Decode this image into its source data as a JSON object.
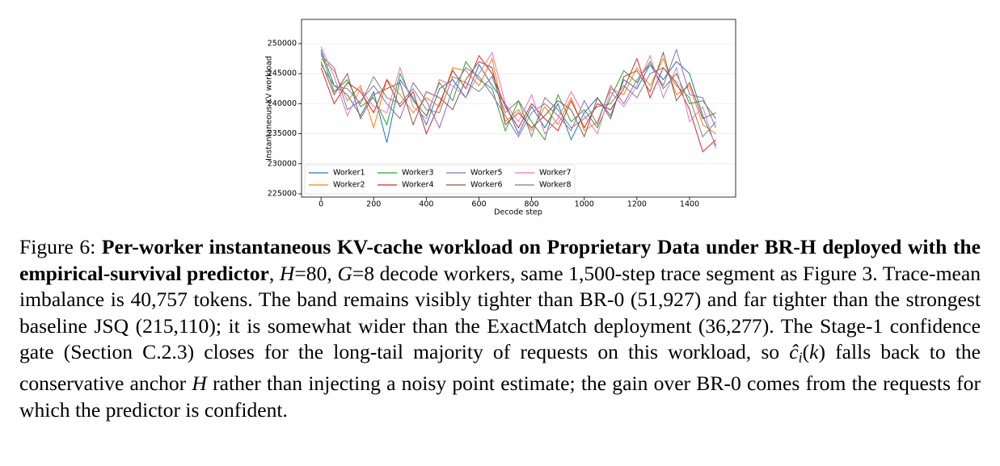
{
  "chart_data": {
    "type": "line",
    "ylabel": "Instantaneous KV workload",
    "xlabel": "Decode step",
    "x": [
      0,
      50,
      100,
      150,
      200,
      250,
      300,
      350,
      400,
      450,
      500,
      550,
      600,
      650,
      700,
      750,
      800,
      850,
      900,
      950,
      1000,
      1050,
      1100,
      1150,
      1200,
      1250,
      1300,
      1350,
      1400,
      1450,
      1500
    ],
    "series": [
      {
        "name": "Worker1",
        "color": "#1f77b4",
        "values": [
          249000,
          243000,
          241500,
          238000,
          242000,
          233500,
          244000,
          241000,
          236500,
          242500,
          244000,
          241000,
          246500,
          243000,
          240000,
          235000,
          239500,
          236000,
          240000,
          234000,
          238500,
          241000,
          238000,
          244000,
          242500,
          246500,
          244000,
          247000,
          245000,
          238000,
          233000
        ]
      },
      {
        "name": "Worker2",
        "color": "#ff7f0e",
        "values": [
          247500,
          245500,
          240500,
          243000,
          236000,
          244000,
          241500,
          238500,
          241000,
          239500,
          246000,
          245500,
          243000,
          247500,
          237000,
          239000,
          235500,
          239500,
          236500,
          241000,
          235500,
          237000,
          242500,
          241500,
          246000,
          243000,
          247500,
          241500,
          243000,
          236500,
          235000
        ]
      },
      {
        "name": "Worker3",
        "color": "#2ca02c",
        "values": [
          248500,
          242000,
          244000,
          239500,
          241000,
          236500,
          245000,
          240500,
          238000,
          243500,
          240500,
          247000,
          244000,
          242500,
          235500,
          240500,
          237000,
          234000,
          241500,
          237000,
          239000,
          236000,
          241000,
          245500,
          243500,
          247000,
          242500,
          245000,
          240000,
          240500,
          237500
        ]
      },
      {
        "name": "Worker4",
        "color": "#d62728",
        "values": [
          246000,
          240000,
          243500,
          242000,
          238500,
          244000,
          239500,
          242000,
          235000,
          240000,
          245500,
          242500,
          248000,
          245000,
          239500,
          236000,
          240000,
          237500,
          235500,
          240500,
          236000,
          240000,
          239000,
          242500,
          247500,
          241000,
          246000,
          243500,
          239000,
          232000,
          234000
        ]
      },
      {
        "name": "Worker5",
        "color": "#9467bd",
        "values": [
          248000,
          246000,
          239000,
          240500,
          243000,
          240000,
          237500,
          243500,
          240500,
          236000,
          242500,
          246000,
          244500,
          241500,
          238000,
          234500,
          238500,
          240000,
          238000,
          235500,
          240500,
          236500,
          243000,
          240000,
          244000,
          246500,
          243000,
          249000,
          241500,
          241000,
          236000
        ]
      },
      {
        "name": "Worker6",
        "color": "#8c564b",
        "values": [
          247000,
          241500,
          245000,
          237500,
          241500,
          242500,
          243500,
          236500,
          242000,
          241000,
          239000,
          244000,
          247000,
          246000,
          236500,
          238500,
          236000,
          238000,
          240500,
          239000,
          234500,
          241000,
          237500,
          244500,
          245500,
          242000,
          248500,
          240500,
          243500,
          237500,
          238500
        ]
      },
      {
        "name": "Worker7",
        "color": "#e377c2",
        "values": [
          249500,
          244500,
          238000,
          242500,
          239500,
          238500,
          246000,
          239500,
          237500,
          244000,
          243000,
          241000,
          245000,
          248500,
          240000,
          237000,
          241500,
          235000,
          237500,
          242000,
          238000,
          235000,
          242000,
          239500,
          243000,
          248000,
          241000,
          246000,
          237000,
          239500,
          232500
        ]
      },
      {
        "name": "Worker8",
        "color": "#7f7f7f",
        "values": [
          246500,
          243000,
          242500,
          240000,
          244500,
          241000,
          240000,
          242500,
          239000,
          238500,
          244500,
          243500,
          242000,
          244500,
          238500,
          240500,
          234500,
          241000,
          239000,
          236000,
          237500,
          239500,
          240000,
          243000,
          241000,
          245000,
          246000,
          243000,
          241000,
          234500,
          237000
        ]
      }
    ],
    "xlim": [
      -74,
      1575
    ],
    "xticks": [
      0,
      200,
      400,
      600,
      800,
      1000,
      1200,
      1400
    ],
    "ylim": [
      224460,
      254030
    ],
    "yticks": [
      225000,
      230000,
      235000,
      240000,
      245000,
      250000
    ],
    "grid": true,
    "legend": "lower left"
  },
  "caption": {
    "segments": [
      {
        "text": "Figure 6: ",
        "style": "normal"
      },
      {
        "text": "Per-worker instantaneous KV-cache workload on Proprietary Data under BR-H deployed with the empirical-survival predictor",
        "style": "bold"
      },
      {
        "text": ", ",
        "style": "normal"
      },
      {
        "text": "H",
        "style": "italic"
      },
      {
        "text": "=80, ",
        "style": "normal"
      },
      {
        "text": "G",
        "style": "italic"
      },
      {
        "text": "=8 decode workers, same 1,500-step trace segment as Figure 3. Trace-mean imbalance is 40,757 tokens. The band remains visibly tighter than BR-0 (51,927) and far tighter than the strongest baseline JSQ (215,110); it is somewhat wider than the ExactMatch deployment (36,277). The Stage-1 confidence gate (Section C.2.3) closes for the long-tail majority of requests on this workload, so ",
        "style": "normal"
      },
      {
        "text": "ĉ",
        "style": "italic"
      },
      {
        "text": "i",
        "style": "sub"
      },
      {
        "text": "(",
        "style": "normal"
      },
      {
        "text": "k",
        "style": "italic"
      },
      {
        "text": ") falls back to the conservative anchor ",
        "style": "normal"
      },
      {
        "text": "H",
        "style": "italic"
      },
      {
        "text": " rather than injecting a noisy point estimate; the gain over BR-0 comes from the requests for which the predictor is confident.",
        "style": "normal"
      }
    ]
  }
}
